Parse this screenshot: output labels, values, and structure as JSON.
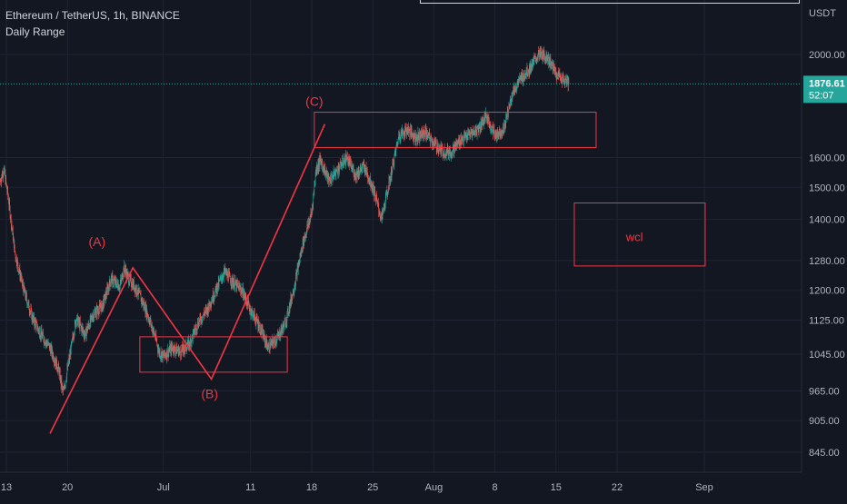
{
  "header": {
    "title": "Ethereum / TetherUS, 1h, BINANCE",
    "indicator": "Daily Range"
  },
  "price_scale": {
    "currency": "USDT",
    "current_price": "1876.61",
    "countdown": "52:07"
  },
  "colors": {
    "background": "#131722",
    "up": "#26a69a",
    "down": "#ef5350",
    "annotation": "#f23645",
    "grid": "#1f2433",
    "text": "#b2b5be"
  },
  "chart_data": {
    "type": "candlestick",
    "y_scale": "log",
    "ylim": [
      810,
      2140
    ],
    "y_ticks": [
      "845.00",
      "905.00",
      "965.00",
      "1045.00",
      "1125.00",
      "1200.00",
      "1280.00",
      "1400.00",
      "1500.00",
      "1600.00",
      "2000.00"
    ],
    "x_ticks": [
      {
        "label": "13",
        "day": 0
      },
      {
        "label": "20",
        "day": 7
      },
      {
        "label": "Jul",
        "day": 18
      },
      {
        "label": "11",
        "day": 28
      },
      {
        "label": "18",
        "day": 35
      },
      {
        "label": "25",
        "day": 42
      },
      {
        "label": "Aug",
        "day": 49
      },
      {
        "label": "8",
        "day": 56
      },
      {
        "label": "15",
        "day": 63
      },
      {
        "label": "22",
        "day": 70
      },
      {
        "label": "Sep",
        "day": 80
      }
    ],
    "price_path": [
      [
        -0.7,
        1520
      ],
      [
        -0.3,
        1560
      ],
      [
        0.2,
        1470
      ],
      [
        1,
        1300
      ],
      [
        2,
        1200
      ],
      [
        3,
        1130
      ],
      [
        4,
        1090
      ],
      [
        5,
        1060
      ],
      [
        6,
        1010
      ],
      [
        6.5,
        960
      ],
      [
        7,
        1010
      ],
      [
        8,
        1130
      ],
      [
        9,
        1090
      ],
      [
        10,
        1140
      ],
      [
        11,
        1160
      ],
      [
        12,
        1230
      ],
      [
        13,
        1210
      ],
      [
        13.5,
        1260
      ],
      [
        14,
        1230
      ],
      [
        15,
        1200
      ],
      [
        16,
        1150
      ],
      [
        17,
        1090
      ],
      [
        17.5,
        1050
      ],
      [
        18,
        1040
      ],
      [
        19,
        1060
      ],
      [
        20,
        1050
      ],
      [
        21,
        1070
      ],
      [
        22,
        1120
      ],
      [
        23,
        1150
      ],
      [
        24,
        1200
      ],
      [
        25,
        1250
      ],
      [
        26,
        1220
      ],
      [
        27,
        1200
      ],
      [
        28,
        1150
      ],
      [
        29,
        1110
      ],
      [
        30,
        1060
      ],
      [
        31,
        1080
      ],
      [
        32,
        1120
      ],
      [
        33,
        1210
      ],
      [
        34,
        1330
      ],
      [
        35,
        1420
      ],
      [
        35.5,
        1560
      ],
      [
        36,
        1590
      ],
      [
        37,
        1520
      ],
      [
        38,
        1560
      ],
      [
        39,
        1600
      ],
      [
        40,
        1540
      ],
      [
        41,
        1570
      ],
      [
        42,
        1500
      ],
      [
        43,
        1400
      ],
      [
        44,
        1530
      ],
      [
        45,
        1680
      ],
      [
        46,
        1700
      ],
      [
        47,
        1670
      ],
      [
        48,
        1690
      ],
      [
        49,
        1650
      ],
      [
        50,
        1620
      ],
      [
        51,
        1620
      ],
      [
        52,
        1660
      ],
      [
        53,
        1680
      ],
      [
        54,
        1700
      ],
      [
        55,
        1750
      ],
      [
        56,
        1680
      ],
      [
        57,
        1700
      ],
      [
        58,
        1840
      ],
      [
        59,
        1900
      ],
      [
        60,
        1940
      ],
      [
        61,
        2000
      ],
      [
        62,
        1990
      ],
      [
        63,
        1920
      ],
      [
        64,
        1890
      ],
      [
        64.5,
        1876.61
      ]
    ],
    "annotations": [
      {
        "type": "wave_label",
        "text": "(A)",
        "day": 10.4,
        "price": 1320
      },
      {
        "type": "wave_label",
        "text": "(B)",
        "day": 23.3,
        "price": 950
      },
      {
        "type": "wave_label",
        "text": "(C)",
        "day": 35.3,
        "price": 1790
      },
      {
        "type": "box_label",
        "text": "wcl",
        "day": 72,
        "price": 1335
      }
    ],
    "wave_line": [
      {
        "day": 5,
        "price": 880
      },
      {
        "day": 14.5,
        "price": 1260
      },
      {
        "day": 23.5,
        "price": 990
      },
      {
        "day": 36.5,
        "price": 1720
      }
    ],
    "boxes": [
      {
        "day0": 15.3,
        "day1": 32.2,
        "price_top": 1085,
        "price_bottom": 1005
      },
      {
        "day0": 35.3,
        "day1": 67.6,
        "price_top": 1765,
        "price_bottom": 1635
      },
      {
        "day0": 65.1,
        "day1": 80.1,
        "price_top": 1450,
        "price_bottom": 1265
      }
    ]
  }
}
